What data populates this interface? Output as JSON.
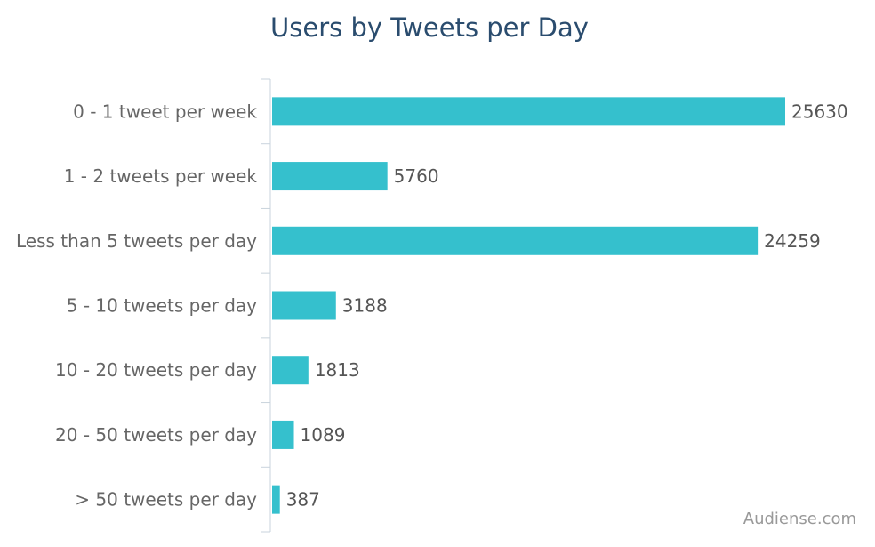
{
  "chart_data": {
    "type": "bar",
    "orientation": "horizontal",
    "title": "Users by Tweets per Day",
    "categories": [
      "0 - 1 tweet per week",
      "1 - 2 tweets per week",
      "Less than 5 tweets per day",
      "5 - 10 tweets per day",
      "10 - 20 tweets per day",
      "20 - 50 tweets per day",
      "> 50 tweets per day"
    ],
    "values": [
      25630,
      5760,
      24259,
      3188,
      1813,
      1089,
      387
    ],
    "value_labels": [
      "25630",
      "5760",
      "24259",
      "3188",
      "1813",
      "1089",
      "387"
    ],
    "xlabel": "",
    "ylabel": "",
    "grid": false,
    "legend": "none"
  },
  "credit": "Audiense.com",
  "colors": {
    "bar": "#35c0cd",
    "title": "#2a4c6e",
    "axis": "#c9d3dc",
    "category_text": "#666666",
    "value_text": "#555555",
    "credit_text": "#999999"
  }
}
